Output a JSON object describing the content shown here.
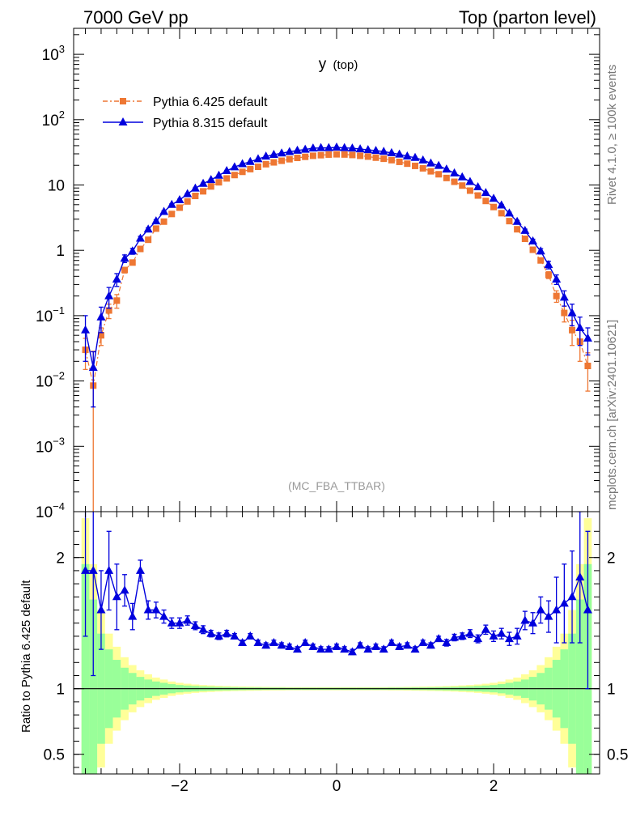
{
  "header": {
    "left": "7000 GeV pp",
    "right": "Top (parton level)"
  },
  "side_labels": {
    "rivet": "Rivet 4.1.0, ≥ 100k events",
    "mcplots": "mcplots.cern.ch [arXiv:2401.10621]"
  },
  "chart_data": [
    {
      "type": "line",
      "panel": "main",
      "title": "y",
      "title_sub": "(top)",
      "watermark": "(MC_FBA_TTBAR)",
      "xlabel": "",
      "ylabel": "",
      "yscale": "log",
      "xlim": [
        -3.35,
        3.35
      ],
      "ylim": [
        0.0001,
        2500
      ],
      "ytick_values": [
        0.0001,
        0.001,
        0.01,
        0.1,
        1,
        10,
        100,
        1000
      ],
      "ytick_labels": [
        {
          "base": "10",
          "exp": "−4"
        },
        {
          "base": "10",
          "exp": "−3"
        },
        {
          "base": "10",
          "exp": "−2"
        },
        {
          "base": "10",
          "exp": "−1"
        },
        {
          "base": "1",
          "exp": ""
        },
        {
          "base": "10",
          "exp": ""
        },
        {
          "base": "10",
          "exp": "2"
        },
        {
          "base": "10",
          "exp": "3"
        }
      ],
      "legend": [
        {
          "label": "Pythia 6.425 default",
          "color": "#ee7733",
          "marker": "square"
        },
        {
          "label": "Pythia 8.315 default",
          "color": "#0000dd",
          "marker": "triangle"
        }
      ],
      "x": [
        -3.2,
        -3.1,
        -3.0,
        -2.9,
        -2.8,
        -2.7,
        -2.6,
        -2.5,
        -2.4,
        -2.3,
        -2.2,
        -2.1,
        -2.0,
        -1.9,
        -1.8,
        -1.7,
        -1.6,
        -1.5,
        -1.4,
        -1.3,
        -1.2,
        -1.1,
        -1.0,
        -0.9,
        -0.8,
        -0.7,
        -0.6,
        -0.5,
        -0.4,
        -0.3,
        -0.2,
        -0.1,
        0.0,
        0.1,
        0.2,
        0.3,
        0.4,
        0.5,
        0.6,
        0.7,
        0.8,
        0.9,
        1.0,
        1.1,
        1.2,
        1.3,
        1.4,
        1.5,
        1.6,
        1.7,
        1.8,
        1.9,
        2.0,
        2.1,
        2.2,
        2.3,
        2.4,
        2.5,
        2.6,
        2.7,
        2.8,
        2.9,
        3.0,
        3.1,
        3.2
      ],
      "series": [
        {
          "name": "Pythia 6.425 default",
          "values": [
            0.03,
            0.0085,
            0.05,
            0.12,
            0.17,
            0.5,
            0.65,
            1.05,
            1.45,
            2.15,
            2.75,
            3.6,
            4.5,
            5.6,
            6.8,
            8.0,
            9.5,
            11.0,
            12.6,
            14.2,
            15.9,
            17.5,
            19.0,
            20.8,
            22.2,
            23.5,
            24.8,
            26.0,
            27.0,
            28.0,
            28.6,
            29.2,
            29.5,
            29.3,
            28.8,
            28.0,
            27.2,
            26.2,
            25.2,
            24.0,
            22.6,
            21.2,
            19.6,
            18.0,
            16.2,
            14.6,
            12.8,
            11.2,
            9.8,
            8.2,
            6.9,
            5.7,
            4.6,
            3.7,
            2.8,
            2.1,
            1.5,
            1.02,
            0.7,
            0.42,
            0.2,
            0.11,
            0.06,
            0.04,
            0.017
          ],
          "errors": [
            0.015,
            0.02,
            0.015,
            0.03,
            0.04,
            0.05,
            0.05,
            0.07,
            0.08,
            0.1,
            0.1,
            0.1,
            0.12,
            0.12,
            0.13,
            0.14,
            0.15,
            0.15,
            0.16,
            0.17,
            0.17,
            0.18,
            0.18,
            0.19,
            0.19,
            0.2,
            0.2,
            0.2,
            0.2,
            0.2,
            0.2,
            0.21,
            0.21,
            0.21,
            0.2,
            0.2,
            0.2,
            0.2,
            0.2,
            0.2,
            0.19,
            0.19,
            0.18,
            0.18,
            0.17,
            0.16,
            0.16,
            0.15,
            0.14,
            0.13,
            0.12,
            0.12,
            0.11,
            0.1,
            0.09,
            0.08,
            0.07,
            0.06,
            0.05,
            0.05,
            0.04,
            0.03,
            0.025,
            0.02,
            0.01
          ]
        },
        {
          "name": "Pythia 8.315 default",
          "values": [
            0.06,
            0.016,
            0.095,
            0.2,
            0.36,
            0.75,
            0.97,
            1.52,
            2.1,
            2.8,
            3.9,
            5.0,
            5.9,
            7.3,
            8.9,
            10.5,
            12.0,
            14.0,
            16.5,
            18.8,
            21.0,
            22.7,
            25.0,
            27.4,
            29.2,
            30.7,
            32.2,
            33.7,
            35.0,
            36.5,
            37.0,
            37.0,
            37.7,
            37.0,
            36.5,
            35.5,
            34.5,
            33.5,
            32.5,
            31.0,
            29.5,
            27.5,
            26.2,
            24.0,
            21.5,
            19.8,
            17.4,
            15.2,
            13.2,
            11.2,
            9.3,
            7.6,
            6.2,
            4.9,
            3.7,
            2.75,
            2.0,
            1.38,
            0.97,
            0.6,
            0.36,
            0.19,
            0.11,
            0.065,
            0.045
          ],
          "errors": [
            0.04,
            0.012,
            0.04,
            0.07,
            0.08,
            0.1,
            0.1,
            0.12,
            0.12,
            0.13,
            0.14,
            0.15,
            0.16,
            0.17,
            0.18,
            0.19,
            0.2,
            0.21,
            0.22,
            0.23,
            0.24,
            0.25,
            0.26,
            0.27,
            0.27,
            0.28,
            0.28,
            0.29,
            0.29,
            0.3,
            0.3,
            0.3,
            0.3,
            0.3,
            0.3,
            0.3,
            0.29,
            0.29,
            0.28,
            0.28,
            0.27,
            0.26,
            0.26,
            0.25,
            0.24,
            0.23,
            0.22,
            0.21,
            0.2,
            0.19,
            0.18,
            0.17,
            0.16,
            0.14,
            0.13,
            0.12,
            0.11,
            0.1,
            0.09,
            0.08,
            0.06,
            0.05,
            0.04,
            0.03,
            0.02
          ]
        }
      ]
    },
    {
      "type": "line",
      "panel": "ratio",
      "xlabel": "",
      "ylabel": "Ratio to Pythia 6.425 default",
      "xlim": [
        -3.35,
        3.35
      ],
      "ylim": [
        0.35,
        2.35
      ],
      "xticks": [
        -2,
        0,
        2
      ],
      "xtick_labels": [
        "−2",
        "0",
        "2"
      ],
      "yticks": [
        0.5,
        1,
        2
      ],
      "ytick_labels": [
        "0.5",
        "1",
        "2"
      ],
      "reference": 1,
      "band_colors": {
        "stat": "#99ff99",
        "total": "#ffff99"
      },
      "band": {
        "stat_halfwidth": [
          0.95,
          0.68,
          0.42,
          0.3,
          0.22,
          0.16,
          0.12,
          0.09,
          0.07,
          0.055,
          0.045,
          0.035,
          0.028,
          0.024,
          0.021,
          0.018,
          0.016,
          0.014,
          0.013,
          0.012,
          0.011,
          0.01,
          0.01,
          0.009,
          0.009,
          0.009,
          0.008,
          0.008,
          0.008,
          0.008,
          0.008,
          0.008,
          0.008,
          0.008,
          0.008,
          0.008,
          0.008,
          0.008,
          0.008,
          0.009,
          0.009,
          0.009,
          0.01,
          0.01,
          0.011,
          0.012,
          0.013,
          0.014,
          0.016,
          0.018,
          0.021,
          0.024,
          0.028,
          0.035,
          0.045,
          0.055,
          0.07,
          0.09,
          0.12,
          0.16,
          0.22,
          0.3,
          0.42,
          0.68,
          0.95
        ],
        "total_halfwidth": [
          1.3,
          0.95,
          0.6,
          0.42,
          0.32,
          0.24,
          0.18,
          0.14,
          0.11,
          0.085,
          0.07,
          0.055,
          0.045,
          0.038,
          0.032,
          0.028,
          0.025,
          0.022,
          0.02,
          0.018,
          0.017,
          0.016,
          0.015,
          0.014,
          0.013,
          0.013,
          0.012,
          0.012,
          0.012,
          0.012,
          0.012,
          0.012,
          0.012,
          0.012,
          0.012,
          0.012,
          0.012,
          0.012,
          0.012,
          0.013,
          0.013,
          0.014,
          0.015,
          0.016,
          0.017,
          0.018,
          0.02,
          0.022,
          0.025,
          0.028,
          0.032,
          0.038,
          0.045,
          0.055,
          0.07,
          0.085,
          0.11,
          0.14,
          0.18,
          0.24,
          0.32,
          0.42,
          0.6,
          0.95,
          1.3
        ]
      },
      "series": [
        {
          "name": "Pythia 8.315 default",
          "values": [
            1.9,
            1.9,
            1.6,
            1.9,
            1.7,
            1.75,
            1.55,
            1.9,
            1.6,
            1.6,
            1.55,
            1.5,
            1.5,
            1.52,
            1.48,
            1.45,
            1.42,
            1.4,
            1.42,
            1.4,
            1.35,
            1.4,
            1.35,
            1.33,
            1.35,
            1.33,
            1.32,
            1.3,
            1.35,
            1.32,
            1.3,
            1.3,
            1.32,
            1.3,
            1.28,
            1.33,
            1.3,
            1.32,
            1.3,
            1.35,
            1.32,
            1.33,
            1.3,
            1.35,
            1.33,
            1.38,
            1.35,
            1.39,
            1.4,
            1.42,
            1.38,
            1.45,
            1.4,
            1.42,
            1.38,
            1.4,
            1.52,
            1.5,
            1.6,
            1.55,
            1.6,
            1.65,
            1.7,
            1.85,
            1.6
          ],
          "errors": [
            0.5,
            0.8,
            0.3,
            0.3,
            0.25,
            0.12,
            0.1,
            0.08,
            0.07,
            0.06,
            0.05,
            0.04,
            0.04,
            0.035,
            0.03,
            0.03,
            0.025,
            0.025,
            0.025,
            0.02,
            0.02,
            0.02,
            0.02,
            0.02,
            0.02,
            0.02,
            0.02,
            0.02,
            0.02,
            0.02,
            0.02,
            0.02,
            0.02,
            0.02,
            0.02,
            0.02,
            0.02,
            0.02,
            0.02,
            0.02,
            0.02,
            0.02,
            0.02,
            0.02,
            0.02,
            0.02,
            0.025,
            0.025,
            0.025,
            0.03,
            0.03,
            0.035,
            0.04,
            0.04,
            0.05,
            0.06,
            0.07,
            0.08,
            0.1,
            0.12,
            0.25,
            0.3,
            0.35,
            0.5,
            0.6
          ]
        }
      ]
    }
  ]
}
